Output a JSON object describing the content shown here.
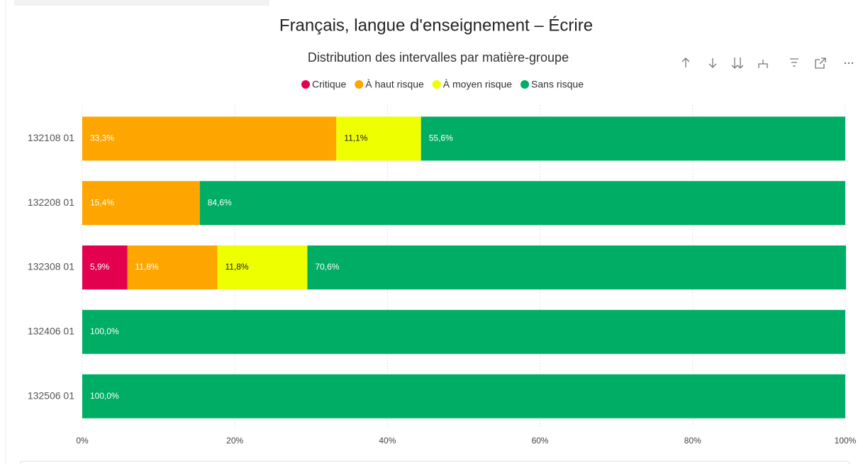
{
  "chart_data": {
    "type": "stacked_bar_100",
    "title": "Français, langue d'enseignement – Écrire",
    "subtitle": "Distribution des intervalles par matière-groupe",
    "categories": [
      "132108 01",
      "132208 01",
      "132308 01",
      "132406 01",
      "132506 01"
    ],
    "series": [
      {
        "name": "Critique",
        "color": "#e3004f",
        "values": [
          null,
          null,
          5.9,
          null,
          null
        ],
        "value_labels": [
          null,
          null,
          "5,9%",
          null,
          null
        ]
      },
      {
        "name": "À haut risque",
        "color": "#ffa500",
        "values": [
          33.3,
          15.4,
          11.8,
          null,
          null
        ],
        "value_labels": [
          "33,3%",
          "15,4%",
          "11,8%",
          null,
          null
        ]
      },
      {
        "name": "À moyen risque",
        "color": "#eeff00",
        "values": [
          11.1,
          null,
          11.8,
          null,
          null
        ],
        "value_labels": [
          "11,1%",
          null,
          "11,8%",
          null,
          null
        ]
      },
      {
        "name": "Sans risque",
        "color": "#00ad65",
        "values": [
          55.6,
          84.6,
          70.6,
          100,
          100
        ],
        "value_labels": [
          "55,6%",
          "84,6%",
          "70,6%",
          "100,0%",
          "100,0%"
        ]
      }
    ],
    "xlim": [
      0,
      100
    ],
    "xticks": [
      {
        "value": 0,
        "label": "0%"
      },
      {
        "value": 20,
        "label": "20%"
      },
      {
        "value": 40,
        "label": "40%"
      },
      {
        "value": 60,
        "label": "60%"
      },
      {
        "value": 80,
        "label": "80%"
      },
      {
        "value": 100,
        "label": "100%"
      }
    ],
    "grid": true,
    "legend": "top"
  }
}
